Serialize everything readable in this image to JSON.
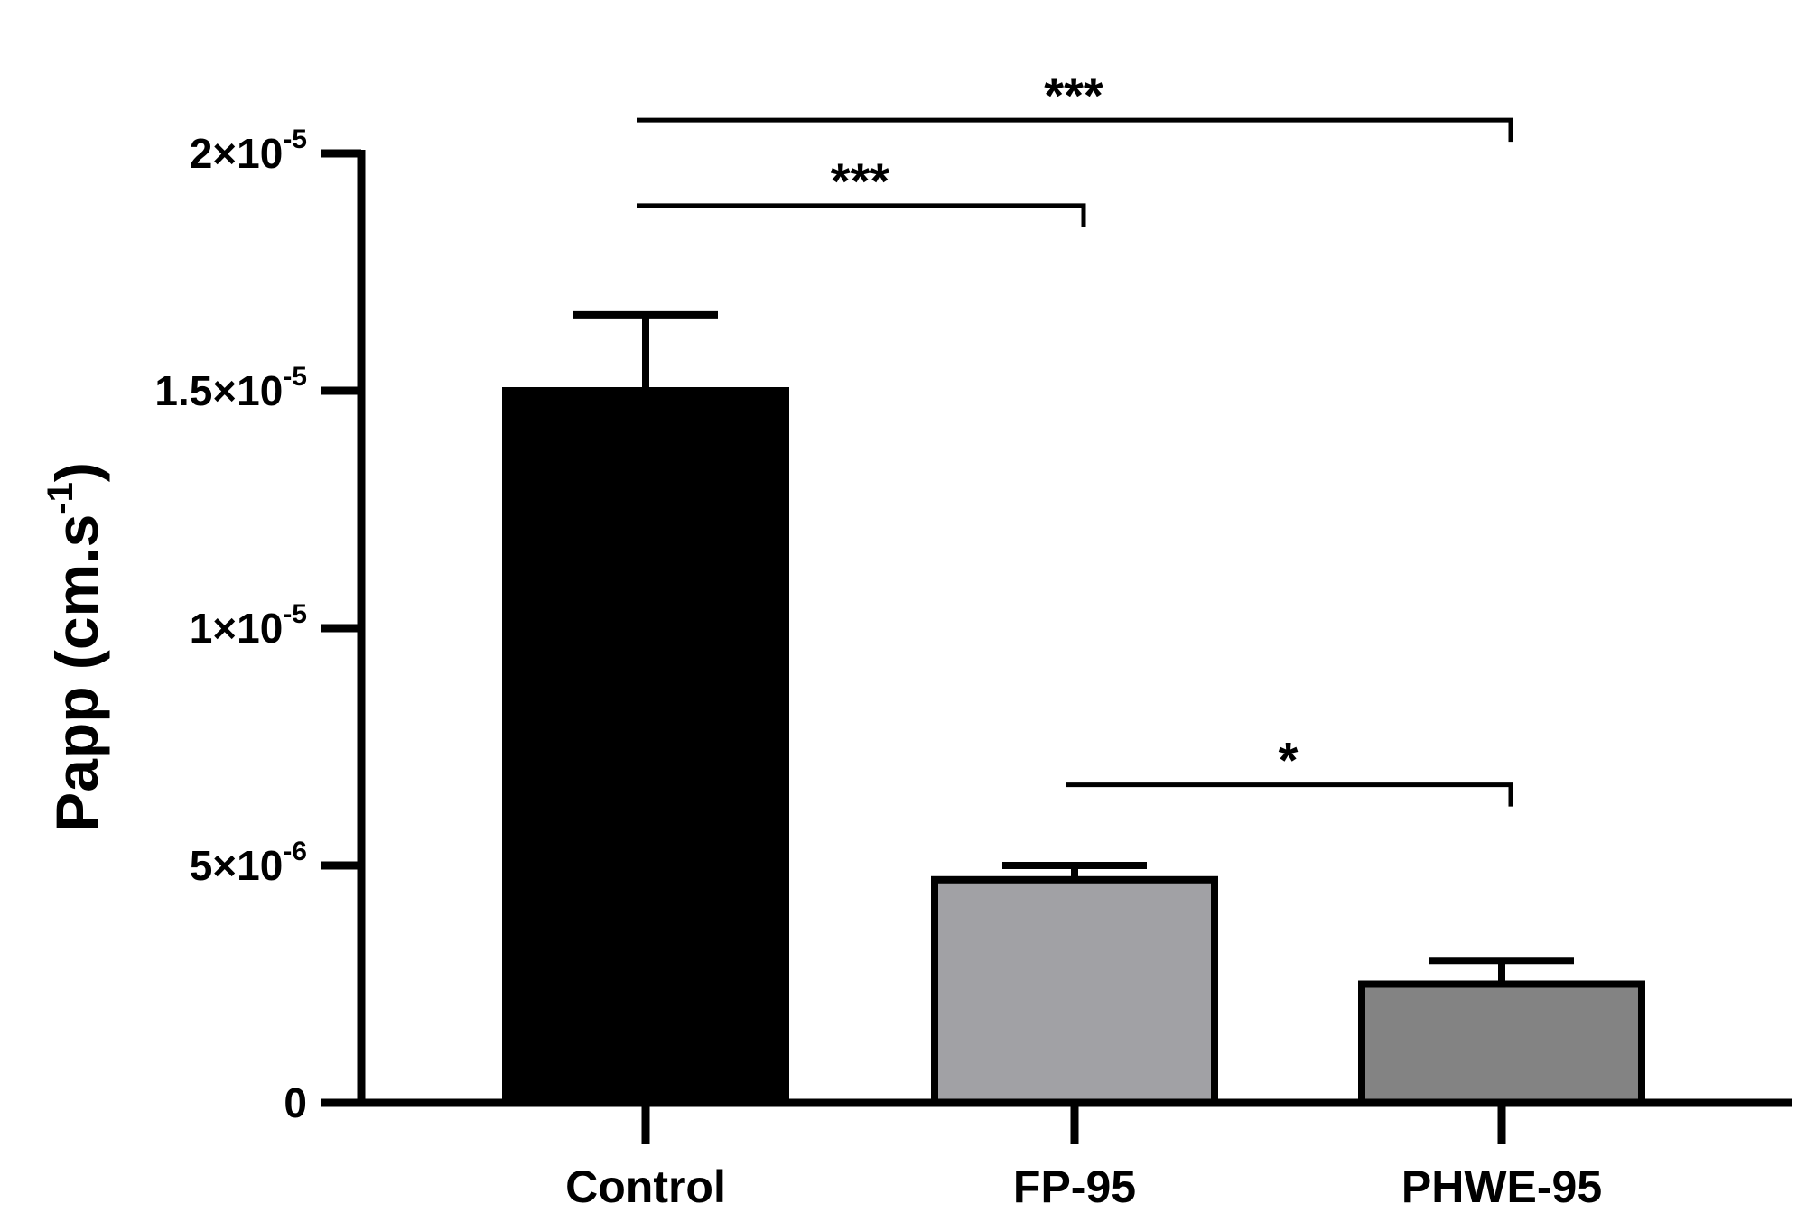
{
  "chart_data": {
    "type": "bar",
    "title": "",
    "xlabel": "",
    "ylabel": {
      "text": "Papp (cm.s",
      "superscript": "-1",
      "suffix": ")"
    },
    "ylim": [
      0,
      2e-05
    ],
    "yticks": [
      {
        "value": 0,
        "base": "0",
        "exponent": ""
      },
      {
        "value": 5e-06,
        "base": "5×10",
        "exponent": "-6"
      },
      {
        "value": 1e-05,
        "base": "1×10",
        "exponent": "-5"
      },
      {
        "value": 1.5e-05,
        "base": "1.5×10",
        "exponent": "-5"
      },
      {
        "value": 2e-05,
        "base": "2×10",
        "exponent": "-5"
      }
    ],
    "categories": [
      "Control",
      "FP-95",
      "PHWE-95"
    ],
    "values": [
      1.5e-05,
      4.7e-06,
      2.5e-06
    ],
    "errors": [
      1.6e-06,
      3e-07,
      5e-07
    ],
    "bar_colors": [
      "#000000",
      "#a1a1a5",
      "#838383"
    ],
    "significance": [
      {
        "from": 0,
        "to": 2,
        "label": "***",
        "level": 2.07e-05
      },
      {
        "from": 0,
        "to": 1,
        "label": "***",
        "level": 1.89e-05
      },
      {
        "from": 1,
        "to": 2,
        "label": "*",
        "level": 6.7e-06
      }
    ],
    "grid": false,
    "legend": "none"
  }
}
